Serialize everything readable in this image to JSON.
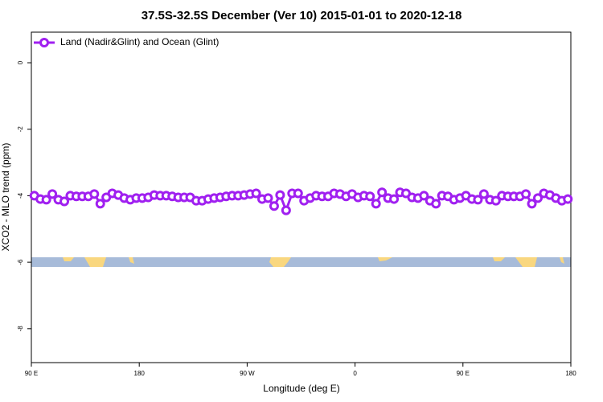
{
  "chart_data": {
    "type": "line",
    "title": "37.5S-32.5S December (Ver 10)   2015-01-01 to 2020-12-18",
    "xlabel": "Longitude (deg E)",
    "ylabel": "XCO2 - MLO trend (ppm)",
    "legend": "top-left",
    "xlim": [
      90,
      540
    ],
    "xticks": [
      {
        "value": 90,
        "label": "90 E"
      },
      {
        "value": 180,
        "label": "180"
      },
      {
        "value": 270,
        "label": "90 W"
      },
      {
        "value": 360,
        "label": "0"
      },
      {
        "value": 450,
        "label": "90 E"
      },
      {
        "value": 540,
        "label": "180"
      }
    ],
    "ylim": [
      -9.02,
      0.92
    ],
    "yticks": [
      0,
      -2,
      -4,
      -6,
      -8
    ],
    "x": [
      92.5,
      97.5,
      102.5,
      107.5,
      112.5,
      117.5,
      122.5,
      127.5,
      132.5,
      137.5,
      142.5,
      147.5,
      152.5,
      157.5,
      162.5,
      167.5,
      172.5,
      177.5,
      182.5,
      187.5,
      192.5,
      197.5,
      202.5,
      207.5,
      212.5,
      217.5,
      222.5,
      227.5,
      232.5,
      237.5,
      242.5,
      247.5,
      252.5,
      257.5,
      262.5,
      267.5,
      272.5,
      277.5,
      282.5,
      287.5,
      292.5,
      297.5,
      302.5,
      307.5,
      312.5,
      317.5,
      322.5,
      327.5,
      332.5,
      337.5,
      342.5,
      347.5,
      352.5,
      357.5,
      362.5,
      367.5,
      372.5,
      377.5,
      382.5,
      387.5,
      392.5,
      397.5,
      402.5,
      407.5,
      412.5,
      417.5,
      422.5,
      427.5,
      432.5,
      437.5,
      442.5,
      447.5,
      452.5,
      457.5,
      462.5,
      467.5,
      472.5,
      477.5,
      482.5,
      487.5,
      492.5,
      497.5,
      502.5,
      507.5,
      512.5,
      517.5,
      522.5,
      527.5,
      532.5,
      537.5
    ],
    "series": [
      {
        "name": "Land (Nadir&Glint) and Ocean (Glint)",
        "color": "#a020f0",
        "values": [
          -4.0,
          -4.1,
          -4.12,
          -3.95,
          -4.12,
          -4.17,
          -4.0,
          -4.02,
          -4.02,
          -4.02,
          -3.95,
          -4.24,
          -4.05,
          -3.93,
          -3.98,
          -4.07,
          -4.12,
          -4.07,
          -4.07,
          -4.05,
          -3.98,
          -4.0,
          -4.0,
          -4.02,
          -4.05,
          -4.05,
          -4.05,
          -4.15,
          -4.15,
          -4.1,
          -4.07,
          -4.05,
          -4.02,
          -4.0,
          -4.0,
          -3.98,
          -3.95,
          -3.93,
          -4.1,
          -4.07,
          -4.31,
          -3.98,
          -4.44,
          -3.93,
          -3.93,
          -4.15,
          -4.07,
          -4.0,
          -4.02,
          -4.02,
          -3.93,
          -3.95,
          -4.02,
          -3.95,
          -4.05,
          -4.0,
          -4.02,
          -4.24,
          -3.9,
          -4.07,
          -4.1,
          -3.9,
          -3.93,
          -4.05,
          -4.07,
          -4.0,
          -4.15,
          -4.24,
          -4.0,
          -4.02,
          -4.12,
          -4.07,
          -4.0,
          -4.1,
          -4.12,
          -3.95,
          -4.12,
          -4.15,
          -4.0,
          -4.02,
          -4.02,
          -4.02,
          -3.95,
          -4.24,
          -4.07,
          -3.93,
          -3.98,
          -4.07,
          -4.15,
          -4.1
        ]
      }
    ]
  }
}
